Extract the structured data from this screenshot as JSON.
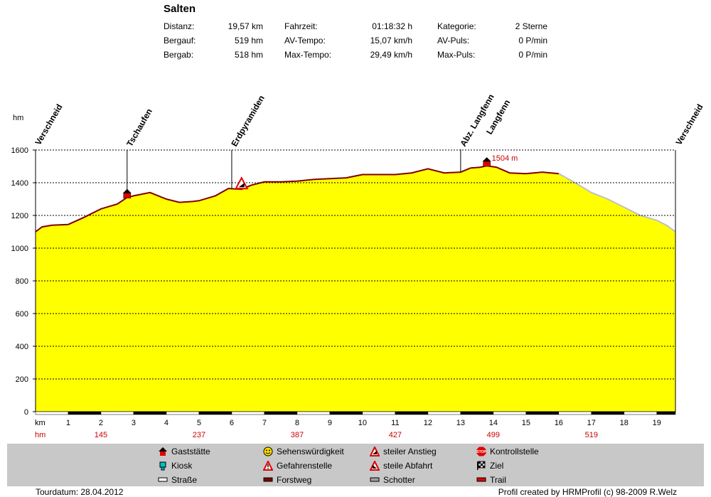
{
  "title": "Salten",
  "stats": [
    {
      "label": "Distanz:",
      "value": "19,57 km"
    },
    {
      "label": "Bergauf:",
      "value": "519 hm"
    },
    {
      "label": "Bergab:",
      "value": "518 hm"
    },
    {
      "label": "Fahrzeit:",
      "value": "01:18:32 h"
    },
    {
      "label": "AV-Tempo:",
      "value": "15,07 km/h"
    },
    {
      "label": "Max-Tempo:",
      "value": "29,49 km/h"
    },
    {
      "label": "Kategorie:",
      "value": "2 Sterne"
    },
    {
      "label": "AV-Puls:",
      "value": "0 P/min"
    },
    {
      "label": "Max-Puls:",
      "value": "0 P/min"
    }
  ],
  "chart_data": {
    "type": "area",
    "ylabel": "hm",
    "xlabel": "km",
    "ylim": [
      0,
      1600
    ],
    "xlim": [
      0,
      19.57
    ],
    "y_ticks": [
      0,
      200,
      400,
      600,
      800,
      1000,
      1200,
      1400,
      1600
    ],
    "x_ticks": [
      1,
      2,
      3,
      4,
      5,
      6,
      7,
      8,
      9,
      10,
      11,
      12,
      13,
      14,
      15,
      16,
      17,
      18,
      19
    ],
    "x": [
      0,
      0.2,
      0.5,
      1.0,
      1.5,
      2.0,
      2.5,
      2.8,
      3.0,
      3.5,
      4.0,
      4.4,
      4.8,
      5.0,
      5.5,
      5.9,
      6.3,
      6.6,
      7.0,
      7.5,
      8.0,
      8.5,
      9.0,
      9.5,
      10.0,
      10.5,
      11.0,
      11.5,
      12.0,
      12.5,
      13.0,
      13.3,
      13.6,
      13.8,
      14.1,
      14.5,
      15.0,
      15.5,
      16.0,
      16.5,
      17.0,
      17.5,
      18.0,
      18.5,
      19.0,
      19.3,
      19.57
    ],
    "y": [
      1100,
      1130,
      1140,
      1145,
      1190,
      1240,
      1270,
      1310,
      1320,
      1340,
      1300,
      1280,
      1285,
      1290,
      1320,
      1365,
      1360,
      1385,
      1405,
      1405,
      1410,
      1420,
      1425,
      1430,
      1450,
      1450,
      1450,
      1460,
      1485,
      1460,
      1465,
      1490,
      1495,
      1504,
      1495,
      1460,
      1455,
      1465,
      1455,
      1400,
      1340,
      1300,
      1250,
      1200,
      1170,
      1140,
      1100
    ],
    "trail_end_km": 16.3,
    "waypoints": [
      {
        "km": 0,
        "name": "Verschneid"
      },
      {
        "km": 2.8,
        "name": "Tschaufen"
      },
      {
        "km": 6.0,
        "name": "Erdpyramiden"
      },
      {
        "km": 13.0,
        "name": "Abz. Langfenn"
      },
      {
        "km": 13.8,
        "name": "Langfenn"
      },
      {
        "km": 19.57,
        "name": "Verschneid"
      }
    ],
    "peak_label": "1504 m",
    "cumulative_climb": [
      {
        "km": 2,
        "value": "145"
      },
      {
        "km": 5,
        "value": "237"
      },
      {
        "km": 8,
        "value": "387"
      },
      {
        "km": 11,
        "value": "427"
      },
      {
        "km": 14,
        "value": "499"
      },
      {
        "km": 17,
        "value": "519"
      }
    ],
    "climb_row_label": "hm",
    "km_row_label": "km",
    "colors": {
      "fill": "#ffff00",
      "trail": "#800000",
      "gravel": "#c0c0c0",
      "grid": "#000000",
      "marker": "#cc0000"
    }
  },
  "legend": [
    {
      "icon": "gasthaus-icon",
      "label": "Gaststätte"
    },
    {
      "icon": "kiosk-icon",
      "label": "Kiosk"
    },
    {
      "icon": "strasse-icon",
      "label": "Straße"
    },
    {
      "icon": "sehenswuerdigkeit-icon",
      "label": "Sehenswürdigkeit"
    },
    {
      "icon": "gefahrenstelle-icon",
      "label": "Gefahrenstelle"
    },
    {
      "icon": "forstweg-icon",
      "label": "Forstweg"
    },
    {
      "icon": "steiler-anstieg-icon",
      "label": "steiler Anstieg"
    },
    {
      "icon": "steile-abfahrt-icon",
      "label": "steile Abfahrt"
    },
    {
      "icon": "schotter-icon",
      "label": "Schotter"
    },
    {
      "icon": "kontrollstelle-icon",
      "label": "Kontrollstelle"
    },
    {
      "icon": "ziel-icon",
      "label": "Ziel"
    },
    {
      "icon": "trail-icon",
      "label": "Trail"
    }
  ],
  "footer": {
    "date": "Tourdatum: 28.04.2012",
    "credit": "Profil created by HRMProfil (c) 98-2009 R.Welz"
  }
}
